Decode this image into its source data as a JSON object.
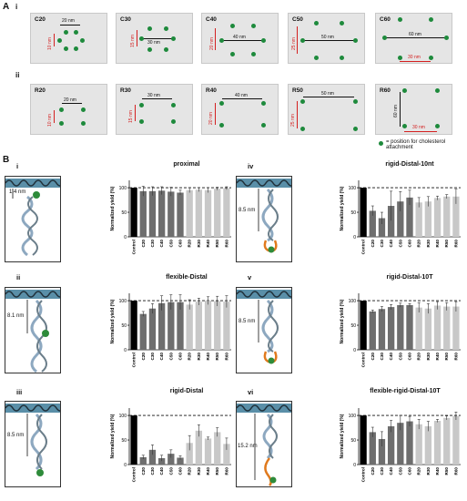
{
  "panelA": {
    "letter": "A",
    "row_i": "i",
    "row_ii": "ii",
    "boxes_i": [
      {
        "label": "C20",
        "h": "20 nm",
        "v": "10 nm"
      },
      {
        "label": "C30",
        "h": "30 nm",
        "v": "15 nm"
      },
      {
        "label": "C40",
        "h": "40 nm",
        "v": "20 nm"
      },
      {
        "label": "C50",
        "h": "50 nm",
        "v": "25 nm"
      },
      {
        "label": "C60",
        "h": "60 nm",
        "v": "30 nm"
      }
    ],
    "boxes_ii": [
      {
        "label": "R20",
        "h": "20 nm",
        "v": "10 nm"
      },
      {
        "label": "R30",
        "h": "30 nm",
        "v": "15 nm"
      },
      {
        "label": "R40",
        "h": "40 nm",
        "v": "20 nm"
      },
      {
        "label": "R50",
        "h": "50 nm",
        "v": "25 nm"
      },
      {
        "label": "R60",
        "h": "30 nm",
        "v": "60 nm"
      }
    ],
    "legend": "= position for cholesterol attachment",
    "dot_color": "#1e8a3c",
    "measure_color": "#d42020"
  },
  "panelB": {
    "letter": "B",
    "subpanels": [
      {
        "roman": "i",
        "title": "proximal",
        "distance": "1.4 nm"
      },
      {
        "roman": "ii",
        "title": "flexible-Distal",
        "distance": "8.1 nm"
      },
      {
        "roman": "iii",
        "title": "rigid-Distal",
        "distance": "8.5 nm"
      },
      {
        "roman": "iv",
        "title": "rigid-Distal-10nt",
        "distance": "8.5 nm"
      },
      {
        "roman": "v",
        "title": "rigid-Distal-10T",
        "distance": "8.5 nm"
      },
      {
        "roman": "vi",
        "title": "flexible-rigid-Distal-10T",
        "distance": "15.2 nm"
      }
    ]
  },
  "chart_data": [
    {
      "type": "bar",
      "title": "proximal",
      "ylabel": "Normalized yield (%)",
      "ylim": [
        0,
        100
      ],
      "yticks": [
        0,
        50,
        100
      ],
      "categories": [
        "Control",
        "C20",
        "C30",
        "C40",
        "C50",
        "C60",
        "R20",
        "R30",
        "R40",
        "R50",
        "R60"
      ],
      "values": [
        100,
        93,
        93,
        94,
        92,
        90,
        95,
        96,
        95,
        98,
        99
      ],
      "errors": [
        0,
        10,
        9,
        8,
        9,
        5,
        5,
        4,
        5,
        3,
        3
      ],
      "reference_line": 100,
      "colors": [
        "#000000",
        "#6e6e6e",
        "#6e6e6e",
        "#6e6e6e",
        "#6e6e6e",
        "#6e6e6e",
        "#c8c8c8",
        "#c8c8c8",
        "#c8c8c8",
        "#c8c8c8",
        "#c8c8c8"
      ]
    },
    {
      "type": "bar",
      "title": "flexible-Distal",
      "ylabel": "Normalized yield (%)",
      "ylim": [
        0,
        100
      ],
      "yticks": [
        0,
        50,
        100
      ],
      "categories": [
        "Control",
        "C20",
        "C30",
        "C40",
        "C50",
        "C60",
        "R20",
        "R30",
        "R40",
        "R50",
        "R60"
      ],
      "values": [
        100,
        73,
        84,
        95,
        97,
        97,
        92,
        98,
        100,
        99,
        98
      ],
      "errors": [
        0,
        5,
        10,
        15,
        15,
        15,
        10,
        7,
        8,
        10,
        12
      ],
      "reference_line": 100,
      "colors": [
        "#000000",
        "#6e6e6e",
        "#6e6e6e",
        "#6e6e6e",
        "#6e6e6e",
        "#6e6e6e",
        "#c8c8c8",
        "#c8c8c8",
        "#c8c8c8",
        "#c8c8c8",
        "#c8c8c8"
      ]
    },
    {
      "type": "bar",
      "title": "rigid-Distal",
      "ylabel": "Normalized yield (%)",
      "ylim": [
        0,
        100
      ],
      "yticks": [
        0,
        50,
        100
      ],
      "categories": [
        "Control",
        "C20",
        "C30",
        "C40",
        "C50",
        "C60",
        "R20",
        "R30",
        "R40",
        "R50",
        "R60"
      ],
      "values": [
        100,
        15,
        30,
        13,
        22,
        14,
        44,
        69,
        53,
        66,
        42
      ],
      "errors": [
        0,
        4,
        10,
        6,
        8,
        4,
        15,
        12,
        3,
        9,
        12
      ],
      "reference_line": 100,
      "colors": [
        "#000000",
        "#6e6e6e",
        "#6e6e6e",
        "#6e6e6e",
        "#6e6e6e",
        "#6e6e6e",
        "#c8c8c8",
        "#c8c8c8",
        "#c8c8c8",
        "#c8c8c8",
        "#c8c8c8"
      ]
    },
    {
      "type": "bar",
      "title": "rigid-Distal-10nt",
      "ylabel": "Normalized yield (%)",
      "ylim": [
        0,
        100
      ],
      "yticks": [
        0,
        50,
        100
      ],
      "categories": [
        "Control",
        "C20",
        "C30",
        "C40",
        "C50",
        "C60",
        "R20",
        "R30",
        "R40",
        "R50",
        "R60"
      ],
      "values": [
        100,
        53,
        38,
        63,
        72,
        80,
        70,
        72,
        79,
        82,
        82
      ],
      "errors": [
        0,
        10,
        12,
        30,
        20,
        15,
        10,
        10,
        4,
        4,
        15
      ],
      "reference_line": 100,
      "colors": [
        "#000000",
        "#6e6e6e",
        "#6e6e6e",
        "#6e6e6e",
        "#6e6e6e",
        "#6e6e6e",
        "#c8c8c8",
        "#c8c8c8",
        "#c8c8c8",
        "#c8c8c8",
        "#c8c8c8"
      ]
    },
    {
      "type": "bar",
      "title": "rigid-Distal-10T",
      "ylabel": "Normalized yield (%)",
      "ylim": [
        0,
        100
      ],
      "yticks": [
        0,
        50,
        100
      ],
      "categories": [
        "Control",
        "C20",
        "C30",
        "C40",
        "C50",
        "C60",
        "R20",
        "R30",
        "R40",
        "R50",
        "R60"
      ],
      "values": [
        100,
        78,
        83,
        87,
        91,
        91,
        86,
        84,
        90,
        88,
        88
      ],
      "errors": [
        0,
        3,
        5,
        5,
        4,
        3,
        10,
        10,
        8,
        8,
        10
      ],
      "reference_line": 100,
      "colors": [
        "#000000",
        "#6e6e6e",
        "#6e6e6e",
        "#6e6e6e",
        "#6e6e6e",
        "#6e6e6e",
        "#c8c8c8",
        "#c8c8c8",
        "#c8c8c8",
        "#c8c8c8",
        "#c8c8c8"
      ]
    },
    {
      "type": "bar",
      "title": "flexible-rigid-Distal-10T",
      "ylabel": "Normalized yield (%)",
      "ylim": [
        0,
        100
      ],
      "yticks": [
        0,
        50,
        100
      ],
      "categories": [
        "Control",
        "C20",
        "C30",
        "C40",
        "C50",
        "C60",
        "R20",
        "R30",
        "R40",
        "R50",
        "R60"
      ],
      "values": [
        100,
        66,
        52,
        78,
        85,
        88,
        82,
        78,
        89,
        95,
        99
      ],
      "errors": [
        0,
        10,
        15,
        12,
        15,
        10,
        10,
        10,
        3,
        4,
        8
      ],
      "reference_line": 100,
      "colors": [
        "#000000",
        "#6e6e6e",
        "#6e6e6e",
        "#6e6e6e",
        "#6e6e6e",
        "#6e6e6e",
        "#c8c8c8",
        "#c8c8c8",
        "#c8c8c8",
        "#c8c8c8",
        "#c8c8c8"
      ]
    }
  ]
}
